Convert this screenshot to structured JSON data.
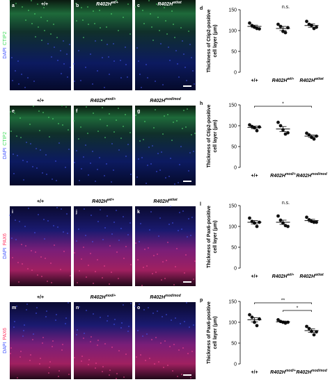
{
  "image_rows": [
    {
      "stain": [
        "DAPI",
        "CTIP2"
      ],
      "stain_colors": [
        "#3a4dff",
        "#3fdc5a"
      ],
      "panels": [
        {
          "letter": "a",
          "genotype": "+/+",
          "superscript": null
        },
        {
          "letter": "b",
          "genotype": "R402H",
          "superscript": "wt/+"
        },
        {
          "letter": "c",
          "genotype": "R402H",
          "superscript": "wt/wt"
        }
      ]
    },
    {
      "stain": [
        "DAPI",
        "CTIP2"
      ],
      "stain_colors": [
        "#3a4dff",
        "#3fdc5a"
      ],
      "panels": [
        {
          "letter": "e",
          "genotype": "+/+",
          "superscript": null
        },
        {
          "letter": "f",
          "genotype": "R402H",
          "superscript": "mod/+"
        },
        {
          "letter": "g",
          "genotype": "R402H",
          "superscript": "mod/mod"
        }
      ]
    },
    {
      "stain": [
        "DAPI",
        "PAX6"
      ],
      "stain_colors": [
        "#3a4dff",
        "#ff3060"
      ],
      "panels": [
        {
          "letter": "i",
          "genotype": "+/+",
          "superscript": null
        },
        {
          "letter": "j",
          "genotype": "R402H",
          "superscript": "wt/+"
        },
        {
          "letter": "k",
          "genotype": "R402H",
          "superscript": "wt/wt"
        }
      ]
    },
    {
      "stain": [
        "DAPI",
        "PAX6"
      ],
      "stain_colors": [
        "#3a4dff",
        "#ff3060"
      ],
      "panels": [
        {
          "letter": "m",
          "genotype": "+/+",
          "superscript": null
        },
        {
          "letter": "n",
          "genotype": "R402H",
          "superscript": "mod/+"
        },
        {
          "letter": "o",
          "genotype": "R402H",
          "superscript": "mod/mod"
        }
      ]
    }
  ],
  "chart_data": [
    {
      "type": "dot",
      "panel": "d",
      "y_label": [
        "Thickness of Ctip2-positive",
        "cell layer (μm)"
      ],
      "categories": [
        "+/+",
        "R402H",
        "R402H"
      ],
      "category_superscripts": [
        null,
        "wt/+",
        "wt/wt"
      ],
      "points": [
        [
          118,
          112,
          108,
          105,
          104
        ],
        [
          115,
          110,
          98,
          95,
          107
        ],
        [
          122,
          115,
          112,
          105,
          108
        ]
      ],
      "means": [
        110,
        105,
        112
      ],
      "errors": [
        3,
        5,
        4
      ],
      "ylim": [
        0,
        150
      ],
      "yticks": [
        0,
        50,
        100,
        150
      ],
      "annotation": "n.s.",
      "significance": []
    },
    {
      "type": "dot",
      "panel": "h",
      "y_label": [
        "Thickness of Ctip2-positive",
        "cell layer (μm)"
      ],
      "categories": [
        "+/+",
        "R402H",
        "R402H"
      ],
      "category_superscripts": [
        null,
        "mod/+",
        "mod/mod"
      ],
      "points": [
        [
          102,
          98,
          95,
          88,
          97
        ],
        [
          108,
          100,
          90,
          80,
          83
        ],
        [
          82,
          78,
          72,
          68,
          75
        ]
      ],
      "means": [
        96,
        92,
        75
      ],
      "errors": [
        3,
        6,
        3
      ],
      "ylim": [
        0,
        150
      ],
      "yticks": [
        0,
        50,
        100,
        150
      ],
      "annotation": null,
      "significance": [
        {
          "from": 0,
          "to": 2,
          "label": "*"
        }
      ]
    },
    {
      "type": "dot",
      "panel": "l",
      "y_label": [
        "Thickness of Pax6-positive",
        "cell layer (μm)"
      ],
      "categories": [
        "+/+",
        "R402H",
        "R402H"
      ],
      "category_superscripts": [
        null,
        "wt/+",
        "wt/wt"
      ],
      "points": [
        [
          120,
          112,
          108,
          100,
          110
        ],
        [
          125,
          115,
          108,
          102,
          100
        ],
        [
          122,
          116,
          112,
          110,
          110
        ]
      ],
      "means": [
        110,
        110,
        114
      ],
      "errors": [
        4,
        5,
        3
      ],
      "ylim": [
        0,
        150
      ],
      "yticks": [
        0,
        50,
        100,
        150
      ],
      "annotation": "n.s.",
      "significance": []
    },
    {
      "type": "dot",
      "panel": "p",
      "y_label": [
        "Thickness of Pax6-positive",
        "cell layer (μm)"
      ],
      "categories": [
        "+/+",
        "R402H",
        "R402H"
      ],
      "category_superscripts": [
        null,
        "mod/+",
        "mod/mod"
      ],
      "points": [
        [
          118,
          112,
          100,
          92,
          108
        ],
        [
          106,
          102,
          100,
          98,
          100
        ],
        [
          90,
          85,
          78,
          70,
          77
        ]
      ],
      "means": [
        106,
        101,
        80
      ],
      "errors": [
        5,
        2,
        4
      ],
      "ylim": [
        0,
        150
      ],
      "yticks": [
        0,
        50,
        100,
        150
      ],
      "annotation": null,
      "significance": [
        {
          "from": 0,
          "to": 2,
          "label": "**"
        },
        {
          "from": 1,
          "to": 2,
          "label": "*"
        }
      ]
    }
  ]
}
